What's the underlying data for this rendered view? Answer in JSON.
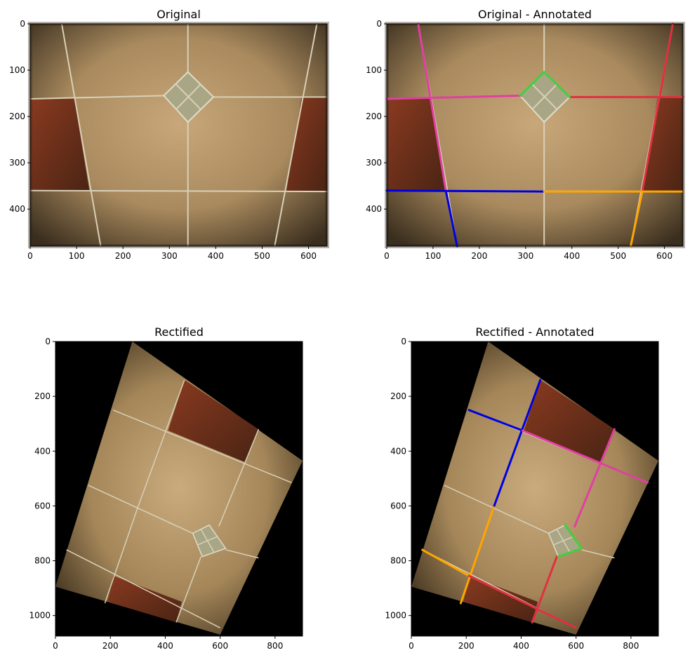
{
  "figure": {
    "background": "#ffffff"
  },
  "chart_data": [
    {
      "type": "image",
      "title": "Original",
      "xlim": [
        0,
        640
      ],
      "ylim": [
        480,
        0
      ],
      "xticks": [
        0,
        100,
        200,
        300,
        400,
        500,
        600
      ],
      "yticks": [
        0,
        100,
        200,
        300,
        400
      ],
      "annotated": false
    },
    {
      "type": "image",
      "title": "Original - Annotated",
      "xlim": [
        0,
        640
      ],
      "ylim": [
        480,
        0
      ],
      "xticks": [
        0,
        100,
        200,
        300,
        400,
        500,
        600
      ],
      "yticks": [
        0,
        100,
        200,
        300,
        400
      ],
      "annotated": true,
      "lines": [
        {
          "color": "#e040a0",
          "points": [
            [
              0,
              162
            ],
            [
              290,
              155
            ]
          ]
        },
        {
          "color": "#e040a0",
          "points": [
            [
              68,
              0
            ],
            [
              128,
              362
            ]
          ]
        },
        {
          "color": "#e03040",
          "points": [
            [
              395,
              158
            ],
            [
              640,
              158
            ]
          ]
        },
        {
          "color": "#e03040",
          "points": [
            [
              618,
              0
            ],
            [
              552,
              362
            ]
          ]
        },
        {
          "color": "#0000e0",
          "points": [
            [
              0,
              360
            ],
            [
              340,
              362
            ]
          ]
        },
        {
          "color": "#0000e0",
          "points": [
            [
              128,
              362
            ],
            [
              152,
              480
            ]
          ]
        },
        {
          "color": "#ffa500",
          "points": [
            [
              340,
              362
            ],
            [
              640,
              362
            ]
          ]
        },
        {
          "color": "#ffa500",
          "points": [
            [
              552,
              362
            ],
            [
              527,
              480
            ]
          ]
        },
        {
          "color": "#40d040",
          "points": [
            [
              288,
              155
            ],
            [
              340,
              104
            ],
            [
              395,
              158
            ]
          ]
        }
      ]
    },
    {
      "type": "image",
      "title": "Rectified",
      "xlim": [
        0,
        900
      ],
      "ylim": [
        1075,
        0
      ],
      "xticks": [
        0,
        200,
        400,
        600,
        800
      ],
      "yticks": [
        0,
        200,
        400,
        600,
        800,
        1000
      ],
      "annotated": false
    },
    {
      "type": "image",
      "title": "Rectified - Annotated",
      "xlim": [
        0,
        900
      ],
      "ylim": [
        1075,
        0
      ],
      "xticks": [
        0,
        200,
        400,
        600,
        800
      ],
      "yticks": [
        0,
        200,
        400,
        600,
        800,
        1000
      ],
      "annotated": true,
      "lines": [
        {
          "color": "#0000e0",
          "points": [
            [
              210,
              250
            ],
            [
              405,
              325
            ]
          ]
        },
        {
          "color": "#0000e0",
          "points": [
            [
              470,
              140
            ],
            [
              300,
              605
            ]
          ]
        },
        {
          "color": "#e040a0",
          "points": [
            [
              405,
              325
            ],
            [
              860,
              515
            ]
          ]
        },
        {
          "color": "#e040a0",
          "points": [
            [
              740,
              320
            ],
            [
              595,
              675
            ]
          ]
        },
        {
          "color": "#ffa500",
          "points": [
            [
              300,
              605
            ],
            [
              180,
              955
            ]
          ]
        },
        {
          "color": "#ffa500",
          "points": [
            [
              40,
              760
            ],
            [
              210,
              855
            ]
          ]
        },
        {
          "color": "#e03040",
          "points": [
            [
              210,
              855
            ],
            [
              600,
              1045
            ]
          ]
        },
        {
          "color": "#e03040",
          "points": [
            [
              530,
              785
            ],
            [
              440,
              1025
            ]
          ]
        },
        {
          "color": "#40d040",
          "points": [
            [
              560,
              670
            ],
            [
              620,
              755
            ],
            [
              535,
              785
            ]
          ]
        }
      ]
    }
  ]
}
